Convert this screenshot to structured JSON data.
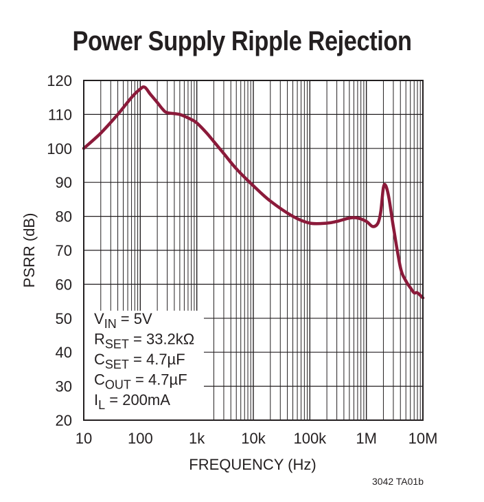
{
  "chart_data": {
    "type": "line",
    "title": "Power Supply Ripple Rejection",
    "xlabel": "FREQUENCY (Hz)",
    "ylabel": "PSRR (dB)",
    "xscale": "log",
    "xlim": [
      10,
      10000000
    ],
    "ylim": [
      20,
      120
    ],
    "x_ticks": [
      10,
      100,
      1000,
      10000,
      100000,
      1000000,
      10000000
    ],
    "x_tick_labels": [
      "10",
      "100",
      "1k",
      "10k",
      "100k",
      "1M",
      "10M"
    ],
    "y_ticks": [
      20,
      30,
      40,
      50,
      60,
      70,
      80,
      90,
      100,
      110,
      120
    ],
    "y_tick_labels": [
      "20",
      "30",
      "40",
      "50",
      "60",
      "70",
      "80",
      "90",
      "100",
      "110",
      "120"
    ],
    "grid": true,
    "line_color": "#8b1a3a",
    "series": [
      {
        "name": "PSRR",
        "x": [
          10,
          20,
          40,
          70,
          100,
          120,
          150,
          200,
          250,
          300,
          500,
          800,
          1000,
          1500,
          2000,
          3000,
          5000,
          10000,
          20000,
          50000,
          100000,
          200000,
          300000,
          500000,
          700000,
          1000000,
          1300000,
          1600000,
          1800000,
          2000000,
          2200000,
          2500000,
          3000000,
          4000000,
          5000000,
          6000000,
          7000000,
          8000000,
          10000000
        ],
        "values": [
          100,
          104.5,
          110,
          115,
          117.5,
          118,
          116,
          113.5,
          111.5,
          110.5,
          110,
          108.5,
          107.5,
          104.5,
          102,
          98.5,
          94,
          89,
          84.5,
          80,
          78,
          78,
          78.5,
          79.5,
          79.5,
          78.5,
          77,
          78,
          81.5,
          88.5,
          89,
          85.5,
          77,
          65,
          61,
          59,
          57.5,
          57.5,
          56
        ]
      }
    ],
    "legend": {
      "placement": "bottom-left",
      "lines": [
        {
          "main": "V",
          "sub": "IN",
          "rest": " = 5V"
        },
        {
          "main": "R",
          "sub": "SET",
          "rest": " = 33.2kΩ"
        },
        {
          "main": "C",
          "sub": "SET",
          "rest": " = 4.7µF"
        },
        {
          "main": "C",
          "sub": "OUT",
          "rest": " = 4.7µF"
        },
        {
          "main": "I",
          "sub": "L",
          "rest": " = 200mA"
        }
      ]
    },
    "figure_id": "3042 TA01b"
  }
}
